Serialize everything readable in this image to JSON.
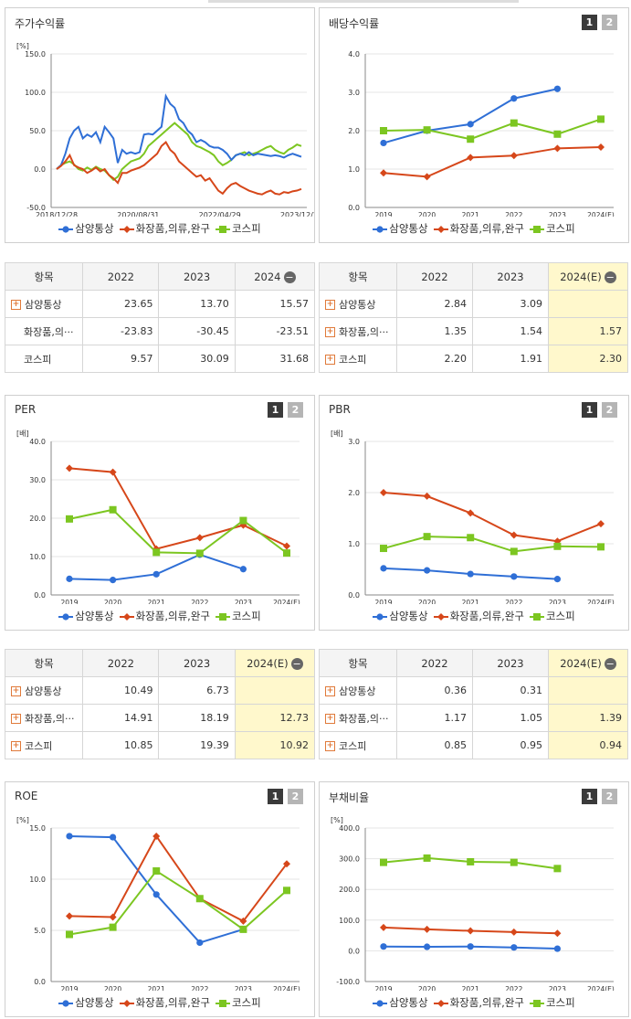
{
  "colors": {
    "series1": "#2f6fd6",
    "series2": "#d6471a",
    "series3": "#7cc621",
    "highlight": "#fff8cc"
  },
  "legend": [
    "삼양통상",
    "화장품,의류,완구",
    "코스피"
  ],
  "toggles": [
    "1",
    "2"
  ],
  "charts": [
    {
      "id": "stock",
      "title": "주가수익률",
      "unit": "[%]",
      "toggles": false,
      "chart_data": {
        "type": "line",
        "y_ticks": [
          "150.0",
          "100.0",
          "50.0",
          "0.0",
          "-50.0"
        ],
        "ylim": [
          -50,
          150
        ],
        "x_labels": [
          "2018/12/28",
          "2020/08/31",
          "2022/04/29",
          "2023/12/28"
        ],
        "series": [
          {
            "name": "삼양통상",
            "values": [
              0,
              5,
              20,
              40,
              50,
              55,
              40,
              45,
              42,
              48,
              35,
              55,
              48,
              40,
              8,
              25,
              20,
              22,
              20,
              22,
              45,
              46,
              45,
              50,
              55,
              95,
              85,
              80,
              65,
              60,
              50,
              45,
              35,
              38,
              35,
              30,
              28,
              28,
              25,
              20,
              12,
              18,
              20,
              18,
              22,
              18,
              20,
              19,
              18,
              17,
              18,
              17,
              15,
              18,
              20,
              18,
              16
            ]
          },
          {
            "name": "화장품,의류,완구",
            "values": [
              0,
              4,
              10,
              18,
              5,
              2,
              0,
              -5,
              -2,
              2,
              -3,
              0,
              -8,
              -12,
              -18,
              -5,
              -5,
              -2,
              0,
              2,
              5,
              10,
              15,
              20,
              30,
              35,
              25,
              20,
              10,
              5,
              0,
              -5,
              -10,
              -8,
              -15,
              -12,
              -20,
              -28,
              -32,
              -25,
              -20,
              -18,
              -22,
              -25,
              -28,
              -30,
              -32,
              -33,
              -30,
              -28,
              -32,
              -33,
              -30,
              -31,
              -29,
              -28,
              -26
            ]
          },
          {
            "name": "코스피",
            "values": [
              0,
              5,
              8,
              10,
              6,
              0,
              -2,
              2,
              -1,
              3,
              0,
              -2,
              -8,
              -14,
              -10,
              0,
              5,
              10,
              12,
              14,
              20,
              30,
              35,
              40,
              45,
              50,
              55,
              60,
              55,
              50,
              45,
              35,
              30,
              28,
              25,
              22,
              18,
              10,
              5,
              8,
              12,
              18,
              20,
              22,
              18,
              20,
              22,
              25,
              28,
              30,
              25,
              22,
              20,
              25,
              28,
              32,
              30
            ]
          }
        ]
      }
    },
    {
      "id": "dividend",
      "title": "배당수익률",
      "unit": "",
      "toggles": true,
      "chart_data": {
        "type": "line",
        "y_ticks": [
          "4.0",
          "3.0",
          "2.0",
          "1.0",
          "0.0"
        ],
        "ylim": [
          0,
          4
        ],
        "x_labels": [
          "2019",
          "2020",
          "2021",
          "2022",
          "2023",
          "2024(E)"
        ],
        "series": [
          {
            "name": "삼양통상",
            "values": [
              1.68,
              2.0,
              2.17,
              2.84,
              3.09,
              null
            ]
          },
          {
            "name": "화장품,의류,완구",
            "values": [
              0.9,
              0.8,
              1.3,
              1.35,
              1.54,
              1.57
            ]
          },
          {
            "name": "코스피",
            "values": [
              2.0,
              2.02,
              1.78,
              2.2,
              1.91,
              2.3
            ]
          }
        ]
      }
    },
    {
      "id": "per",
      "title": "PER",
      "unit": "[배]",
      "toggles": true,
      "chart_data": {
        "type": "line",
        "y_ticks": [
          "40.0",
          "30.0",
          "20.0",
          "10.0",
          "0.0"
        ],
        "ylim": [
          0,
          40
        ],
        "x_labels": [
          "2019",
          "2020",
          "2021",
          "2022",
          "2023",
          "2024(E)"
        ],
        "series": [
          {
            "name": "삼양통상",
            "values": [
              4.2,
              3.9,
              5.4,
              10.49,
              6.73,
              null
            ]
          },
          {
            "name": "화장품,의류,완구",
            "values": [
              33,
              32,
              12,
              14.91,
              18.19,
              12.73
            ]
          },
          {
            "name": "코스피",
            "values": [
              19.8,
              22.2,
              11.1,
              10.85,
              19.39,
              10.92
            ]
          }
        ]
      }
    },
    {
      "id": "pbr",
      "title": "PBR",
      "unit": "[배]",
      "toggles": true,
      "chart_data": {
        "type": "line",
        "y_ticks": [
          "3.0",
          "2.0",
          "1.0",
          "0.0"
        ],
        "ylim": [
          0,
          3
        ],
        "x_labels": [
          "2019",
          "2020",
          "2021",
          "2022",
          "2023",
          "2024(E)"
        ],
        "series": [
          {
            "name": "삼양통상",
            "values": [
              0.52,
              0.48,
              0.41,
              0.36,
              0.31,
              null
            ]
          },
          {
            "name": "화장품,의류,완구",
            "values": [
              2.0,
              1.93,
              1.6,
              1.17,
              1.05,
              1.39
            ]
          },
          {
            "name": "코스피",
            "values": [
              0.91,
              1.14,
              1.12,
              0.85,
              0.95,
              0.94
            ]
          }
        ]
      }
    },
    {
      "id": "roe",
      "title": "ROE",
      "unit": "[%]",
      "toggles": true,
      "chart_data": {
        "type": "line",
        "y_ticks": [
          "15.0",
          "10.0",
          "5.0",
          "0.0"
        ],
        "ylim": [
          0,
          15
        ],
        "x_labels": [
          "2019",
          "2020",
          "2021",
          "2022",
          "2023",
          "2024(E)"
        ],
        "series": [
          {
            "name": "삼양통상",
            "values": [
              14.2,
              14.1,
              8.5,
              3.8,
              5.1,
              null
            ]
          },
          {
            "name": "화장품,의류,완구",
            "values": [
              6.4,
              6.3,
              14.2,
              8.1,
              5.9,
              11.5
            ]
          },
          {
            "name": "코스피",
            "values": [
              4.6,
              5.3,
              10.8,
              8.1,
              5.1,
              8.9
            ]
          }
        ]
      }
    },
    {
      "id": "debt",
      "title": "부채비율",
      "unit": "[%]",
      "toggles": true,
      "chart_data": {
        "type": "line",
        "y_ticks": [
          "400.0",
          "300.0",
          "200.0",
          "100.0",
          "0.0",
          "-100.0"
        ],
        "ylim": [
          -100,
          400
        ],
        "x_labels": [
          "2019",
          "2020",
          "2021",
          "2022",
          "2023",
          "2024(E)"
        ],
        "series": [
          {
            "name": "삼양통상",
            "values": [
              14,
              13,
              14,
              11,
              7,
              null
            ]
          },
          {
            "name": "화장품,의류,완구",
            "values": [
              76,
              70,
              65,
              61,
              57,
              null
            ]
          },
          {
            "name": "코스피",
            "values": [
              288,
              302,
              290,
              288,
              268,
              null
            ]
          }
        ]
      }
    }
  ],
  "tables": [
    {
      "id": "t-stock",
      "headers": [
        "항목",
        "2022",
        "2023",
        "2024"
      ],
      "minus": true,
      "hl": false,
      "rows": [
        {
          "label": "삼양통상",
          "plus": true,
          "cells": [
            "23.65",
            "13.70",
            "15.57"
          ]
        },
        {
          "label": "화장품,의···",
          "plus": false,
          "cells": [
            "-23.83",
            "-30.45",
            "-23.51"
          ]
        },
        {
          "label": "코스피",
          "plus": false,
          "cells": [
            "9.57",
            "30.09",
            "31.68"
          ]
        }
      ]
    },
    {
      "id": "t-dividend",
      "headers": [
        "항목",
        "2022",
        "2023",
        "2024(E)"
      ],
      "minus": true,
      "hl": true,
      "rows": [
        {
          "label": "삼양통상",
          "plus": true,
          "cells": [
            "2.84",
            "3.09",
            ""
          ]
        },
        {
          "label": "화장품,의···",
          "plus": true,
          "cells": [
            "1.35",
            "1.54",
            "1.57"
          ]
        },
        {
          "label": "코스피",
          "plus": true,
          "cells": [
            "2.20",
            "1.91",
            "2.30"
          ]
        }
      ]
    },
    {
      "id": "t-per",
      "headers": [
        "항목",
        "2022",
        "2023",
        "2024(E)"
      ],
      "minus": true,
      "hl": true,
      "rows": [
        {
          "label": "삼양통상",
          "plus": true,
          "cells": [
            "10.49",
            "6.73",
            ""
          ]
        },
        {
          "label": "화장품,의···",
          "plus": true,
          "cells": [
            "14.91",
            "18.19",
            "12.73"
          ]
        },
        {
          "label": "코스피",
          "plus": true,
          "cells": [
            "10.85",
            "19.39",
            "10.92"
          ]
        }
      ]
    },
    {
      "id": "t-pbr",
      "headers": [
        "항목",
        "2022",
        "2023",
        "2024(E)"
      ],
      "minus": true,
      "hl": true,
      "rows": [
        {
          "label": "삼양통상",
          "plus": true,
          "cells": [
            "0.36",
            "0.31",
            ""
          ]
        },
        {
          "label": "화장품,의···",
          "plus": true,
          "cells": [
            "1.17",
            "1.05",
            "1.39"
          ]
        },
        {
          "label": "코스피",
          "plus": true,
          "cells": [
            "0.85",
            "0.95",
            "0.94"
          ]
        }
      ]
    }
  ]
}
